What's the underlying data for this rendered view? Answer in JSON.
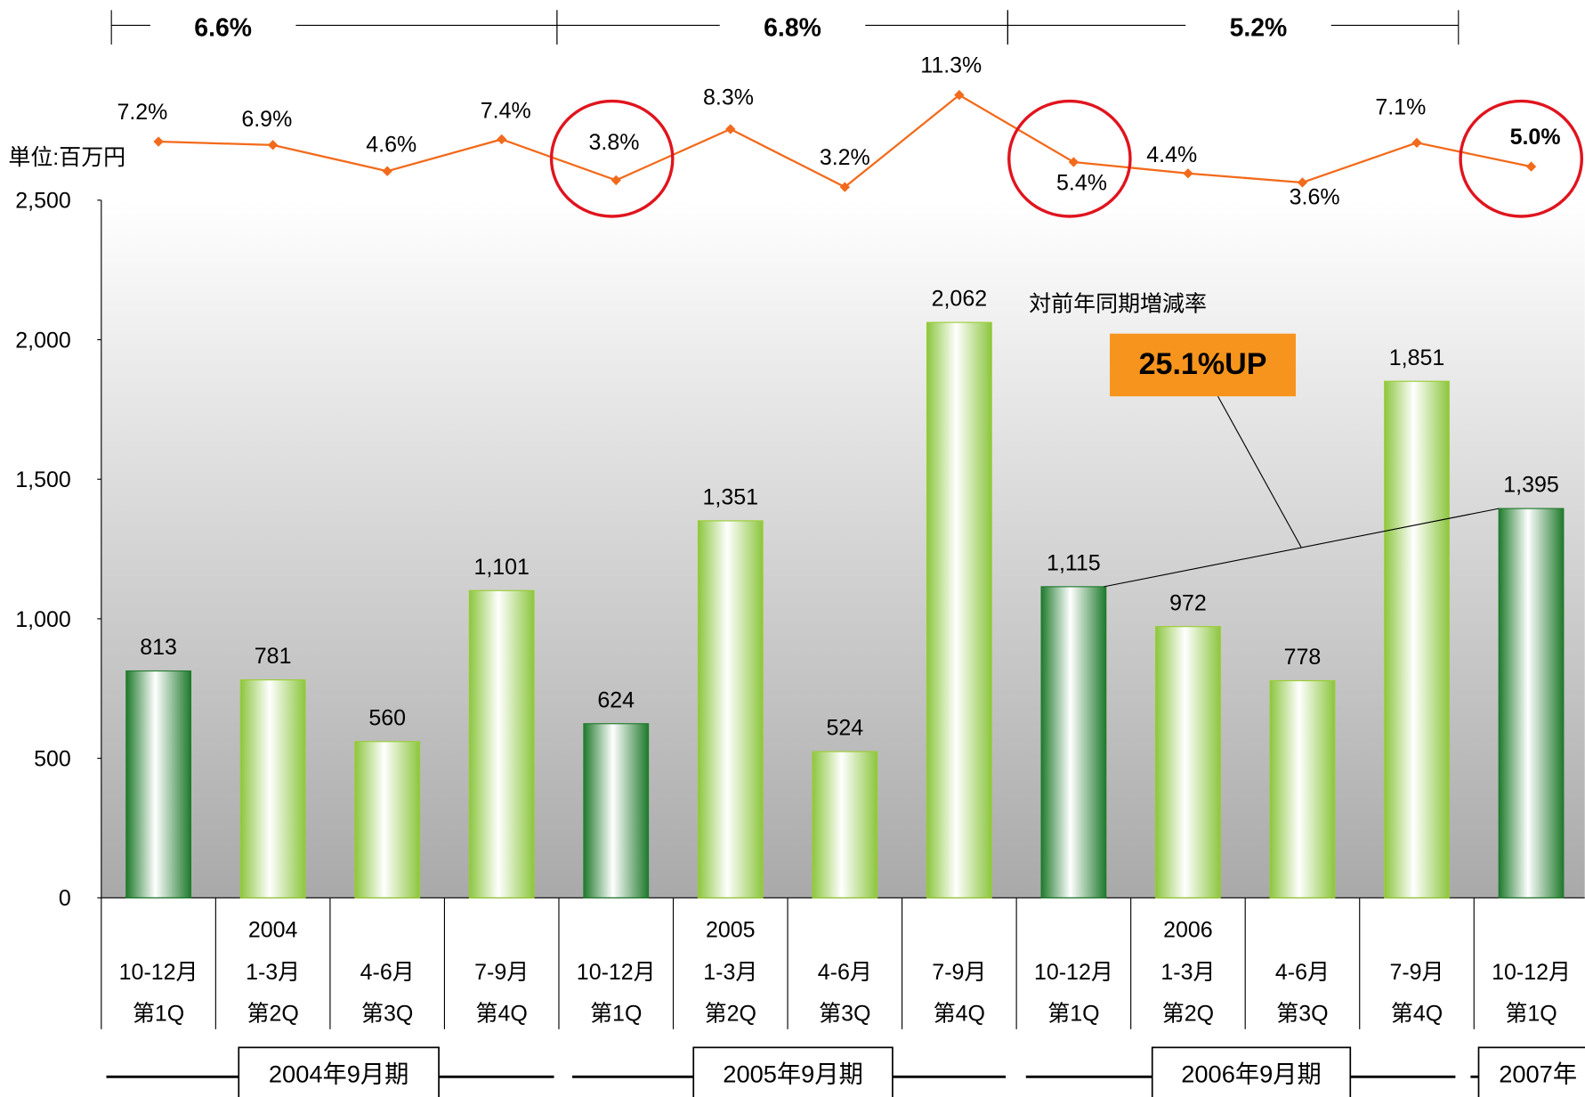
{
  "chart_data": {
    "type": "bar",
    "unit_label": "単位:百万円",
    "categories": [
      {
        "period": "10-12月",
        "quarter": "第1Q"
      },
      {
        "year": "2004",
        "period": "1-3月",
        "quarter": "第2Q"
      },
      {
        "period": "4-6月",
        "quarter": "第3Q"
      },
      {
        "period": "7-9月",
        "quarter": "第4Q"
      },
      {
        "period": "10-12月",
        "quarter": "第1Q"
      },
      {
        "year": "2005",
        "period": "1-3月",
        "quarter": "第2Q"
      },
      {
        "period": "4-6月",
        "quarter": "第3Q"
      },
      {
        "period": "7-9月",
        "quarter": "第4Q"
      },
      {
        "period": "10-12月",
        "quarter": "第1Q"
      },
      {
        "year": "2006",
        "period": "1-3月",
        "quarter": "第2Q"
      },
      {
        "period": "4-6月",
        "quarter": "第3Q"
      },
      {
        "period": "7-9月",
        "quarter": "第4Q"
      },
      {
        "period": "10-12月",
        "quarter": "第1Q"
      }
    ],
    "values": [
      813,
      781,
      560,
      1101,
      624,
      1351,
      524,
      2062,
      1115,
      972,
      778,
      1851,
      1395
    ],
    "value_labels": [
      "813",
      "781",
      "560",
      "1,101",
      "624",
      "1,351",
      "524",
      "2,062",
      "1,115",
      "972",
      "778",
      "1,851",
      "1,395"
    ],
    "color": "#9acd32",
    "highlight_color": "#1f7a2c",
    "ylim": [
      0,
      2500
    ],
    "yticks": [
      0,
      500,
      {
        "value": 1000,
        "label": "1,000"
      },
      {
        "value": 1500,
        "label": "1,500"
      },
      {
        "value": 2000,
        "label": "2,000"
      },
      {
        "value": 2500,
        "label": "2,500"
      }
    ],
    "overlay": {
      "type": "line",
      "color": "#f26a1b",
      "values": [
        7.2,
        6.9,
        4.6,
        7.4,
        3.8,
        8.3,
        3.2,
        11.3,
        5.4,
        4.4,
        3.6,
        7.1,
        5.0
      ],
      "value_labels": [
        "7.2%",
        "6.9%",
        "4.6%",
        "7.4%",
        "3.8%",
        "8.3%",
        "3.2%",
        "11.3%",
        "5.4%",
        "4.4%",
        "3.6%",
        "7.1%",
        "5.0%"
      ]
    },
    "period_growth": [
      "6.6%",
      "6.8%",
      "5.2%"
    ],
    "fiscal_periods": [
      "2004年9月期",
      "2005年9月期",
      "2006年9月期",
      "2007年"
    ],
    "annotation": {
      "caption": "対前年同期増減率",
      "callout": "25.1%UP"
    }
  }
}
